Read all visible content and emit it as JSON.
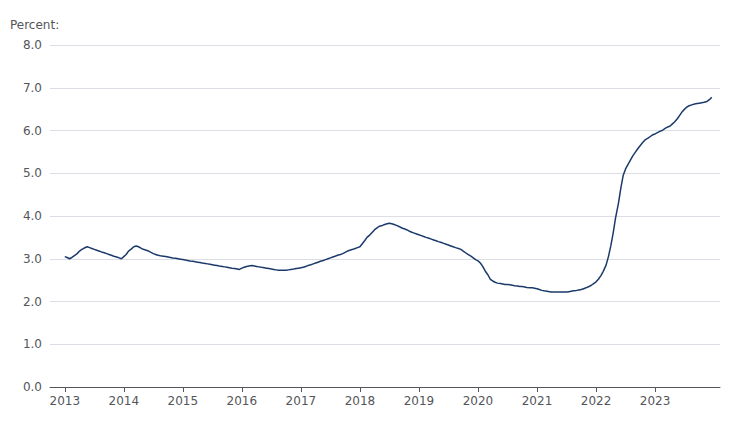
{
  "chart_data": {
    "type": "line",
    "ylabel": "Percent:",
    "color": "#1b3a6b",
    "grid": true,
    "xlim": [
      2012.75,
      2024.1
    ],
    "xticks": [
      2013,
      2014,
      2015,
      2016,
      2017,
      2018,
      2019,
      2020,
      2021,
      2022,
      2023
    ],
    "ylim": [
      0.0,
      8.0
    ],
    "yticks": [
      {
        "value": 0.0,
        "label": "0.0"
      },
      {
        "value": 1.0,
        "label": "1.0"
      },
      {
        "value": 2.0,
        "label": "2.0"
      },
      {
        "value": 3.0,
        "label": "3.0"
      },
      {
        "value": 4.0,
        "label": "4.0"
      },
      {
        "value": 5.0,
        "label": "5.0"
      },
      {
        "value": 6.0,
        "label": "6.0"
      },
      {
        "value": 7.0,
        "label": "7.0"
      },
      {
        "value": 8.0,
        "label": "8.0"
      }
    ],
    "x": [
      2013.0,
      2013.04,
      2013.08,
      2013.12,
      2013.17,
      2013.21,
      2013.25,
      2013.29,
      2013.33,
      2013.38,
      2013.42,
      2013.46,
      2013.5,
      2013.54,
      2013.58,
      2013.62,
      2013.67,
      2013.71,
      2013.75,
      2013.79,
      2013.83,
      2013.88,
      2013.92,
      2013.96,
      2014.0,
      2014.04,
      2014.08,
      2014.12,
      2014.17,
      2014.21,
      2014.25,
      2014.29,
      2014.33,
      2014.38,
      2014.42,
      2014.46,
      2014.5,
      2014.54,
      2014.58,
      2014.62,
      2014.67,
      2014.71,
      2014.75,
      2014.79,
      2014.83,
      2014.88,
      2014.92,
      2014.96,
      2015.0,
      2015.04,
      2015.08,
      2015.12,
      2015.17,
      2015.21,
      2015.25,
      2015.29,
      2015.33,
      2015.38,
      2015.42,
      2015.46,
      2015.5,
      2015.54,
      2015.58,
      2015.62,
      2015.67,
      2015.71,
      2015.75,
      2015.79,
      2015.83,
      2015.88,
      2015.92,
      2015.96,
      2016.0,
      2016.04,
      2016.08,
      2016.12,
      2016.17,
      2016.21,
      2016.25,
      2016.29,
      2016.33,
      2016.38,
      2016.42,
      2016.46,
      2016.5,
      2016.54,
      2016.58,
      2016.62,
      2016.67,
      2016.71,
      2016.75,
      2016.79,
      2016.83,
      2016.88,
      2016.92,
      2016.96,
      2017.0,
      2017.04,
      2017.08,
      2017.12,
      2017.17,
      2017.21,
      2017.25,
      2017.29,
      2017.33,
      2017.38,
      2017.42,
      2017.46,
      2017.5,
      2017.54,
      2017.58,
      2017.62,
      2017.67,
      2017.71,
      2017.75,
      2017.79,
      2017.83,
      2017.88,
      2017.92,
      2017.96,
      2018.0,
      2018.04,
      2018.08,
      2018.12,
      2018.17,
      2018.21,
      2018.25,
      2018.29,
      2018.33,
      2018.38,
      2018.42,
      2018.46,
      2018.5,
      2018.54,
      2018.58,
      2018.62,
      2018.67,
      2018.71,
      2018.75,
      2018.79,
      2018.83,
      2018.88,
      2018.92,
      2018.96,
      2019.0,
      2019.04,
      2019.08,
      2019.12,
      2019.17,
      2019.21,
      2019.25,
      2019.29,
      2019.33,
      2019.38,
      2019.42,
      2019.46,
      2019.5,
      2019.54,
      2019.58,
      2019.62,
      2019.67,
      2019.71,
      2019.75,
      2019.79,
      2019.83,
      2019.88,
      2019.92,
      2019.96,
      2020.0,
      2020.04,
      2020.08,
      2020.12,
      2020.17,
      2020.21,
      2020.25,
      2020.29,
      2020.33,
      2020.38,
      2020.42,
      2020.46,
      2020.5,
      2020.54,
      2020.58,
      2020.62,
      2020.67,
      2020.71,
      2020.75,
      2020.79,
      2020.83,
      2020.88,
      2020.92,
      2020.96,
      2021.0,
      2021.04,
      2021.08,
      2021.12,
      2021.17,
      2021.21,
      2021.25,
      2021.29,
      2021.33,
      2021.38,
      2021.42,
      2021.46,
      2021.5,
      2021.54,
      2021.58,
      2021.62,
      2021.67,
      2021.71,
      2021.75,
      2021.79,
      2021.83,
      2021.88,
      2021.92,
      2021.96,
      2022.0,
      2022.04,
      2022.08,
      2022.12,
      2022.17,
      2022.21,
      2022.25,
      2022.29,
      2022.33,
      2022.38,
      2022.42,
      2022.46,
      2022.5,
      2022.54,
      2022.58,
      2022.62,
      2022.67,
      2022.71,
      2022.75,
      2022.79,
      2022.83,
      2022.88,
      2022.92,
      2022.96,
      2023.0,
      2023.04,
      2023.08,
      2023.12,
      2023.17,
      2023.21,
      2023.25,
      2023.29,
      2023.33,
      2023.38,
      2023.42,
      2023.46,
      2023.5,
      2023.54,
      2023.58,
      2023.62,
      2023.67,
      2023.71,
      2023.75,
      2023.79,
      2023.83,
      2023.88,
      2023.92,
      2023.96
    ],
    "values": [
      3.05,
      3.03,
      3.0,
      3.03,
      3.08,
      3.12,
      3.18,
      3.22,
      3.25,
      3.28,
      3.26,
      3.24,
      3.22,
      3.2,
      3.18,
      3.16,
      3.14,
      3.12,
      3.1,
      3.08,
      3.06,
      3.04,
      3.02,
      3.0,
      3.05,
      3.1,
      3.18,
      3.22,
      3.28,
      3.3,
      3.28,
      3.25,
      3.22,
      3.2,
      3.18,
      3.15,
      3.12,
      3.1,
      3.08,
      3.07,
      3.06,
      3.05,
      3.04,
      3.03,
      3.02,
      3.01,
      3.0,
      2.99,
      2.98,
      2.97,
      2.96,
      2.95,
      2.94,
      2.93,
      2.92,
      2.91,
      2.9,
      2.89,
      2.88,
      2.87,
      2.86,
      2.85,
      2.84,
      2.83,
      2.82,
      2.81,
      2.8,
      2.79,
      2.78,
      2.77,
      2.76,
      2.75,
      2.78,
      2.8,
      2.82,
      2.83,
      2.84,
      2.83,
      2.82,
      2.81,
      2.8,
      2.79,
      2.78,
      2.77,
      2.76,
      2.75,
      2.74,
      2.73,
      2.73,
      2.73,
      2.73,
      2.74,
      2.75,
      2.76,
      2.77,
      2.78,
      2.79,
      2.8,
      2.82,
      2.84,
      2.86,
      2.88,
      2.9,
      2.92,
      2.94,
      2.96,
      2.98,
      3.0,
      3.02,
      3.04,
      3.06,
      3.08,
      3.1,
      3.12,
      3.15,
      3.18,
      3.2,
      3.22,
      3.24,
      3.26,
      3.28,
      3.35,
      3.42,
      3.5,
      3.56,
      3.62,
      3.68,
      3.72,
      3.76,
      3.78,
      3.8,
      3.82,
      3.83,
      3.82,
      3.8,
      3.78,
      3.75,
      3.72,
      3.7,
      3.68,
      3.65,
      3.62,
      3.6,
      3.58,
      3.56,
      3.54,
      3.52,
      3.5,
      3.48,
      3.46,
      3.44,
      3.42,
      3.4,
      3.38,
      3.36,
      3.34,
      3.32,
      3.3,
      3.28,
      3.26,
      3.24,
      3.22,
      3.18,
      3.14,
      3.1,
      3.06,
      3.02,
      2.98,
      2.95,
      2.9,
      2.82,
      2.72,
      2.62,
      2.52,
      2.48,
      2.45,
      2.43,
      2.42,
      2.41,
      2.4,
      2.4,
      2.39,
      2.38,
      2.37,
      2.36,
      2.35,
      2.35,
      2.34,
      2.33,
      2.32,
      2.32,
      2.31,
      2.3,
      2.28,
      2.26,
      2.25,
      2.24,
      2.23,
      2.22,
      2.22,
      2.22,
      2.22,
      2.22,
      2.22,
      2.22,
      2.23,
      2.24,
      2.25,
      2.26,
      2.27,
      2.28,
      2.3,
      2.32,
      2.35,
      2.38,
      2.42,
      2.46,
      2.52,
      2.6,
      2.7,
      2.85,
      3.05,
      3.3,
      3.6,
      3.95,
      4.3,
      4.65,
      4.95,
      5.1,
      5.2,
      5.3,
      5.4,
      5.5,
      5.58,
      5.65,
      5.72,
      5.78,
      5.82,
      5.86,
      5.9,
      5.92,
      5.95,
      5.98,
      6.0,
      6.05,
      6.08,
      6.1,
      6.15,
      6.2,
      6.28,
      6.36,
      6.44,
      6.5,
      6.55,
      6.58,
      6.6,
      6.62,
      6.63,
      6.64,
      6.65,
      6.66,
      6.68,
      6.72,
      6.78
    ]
  }
}
